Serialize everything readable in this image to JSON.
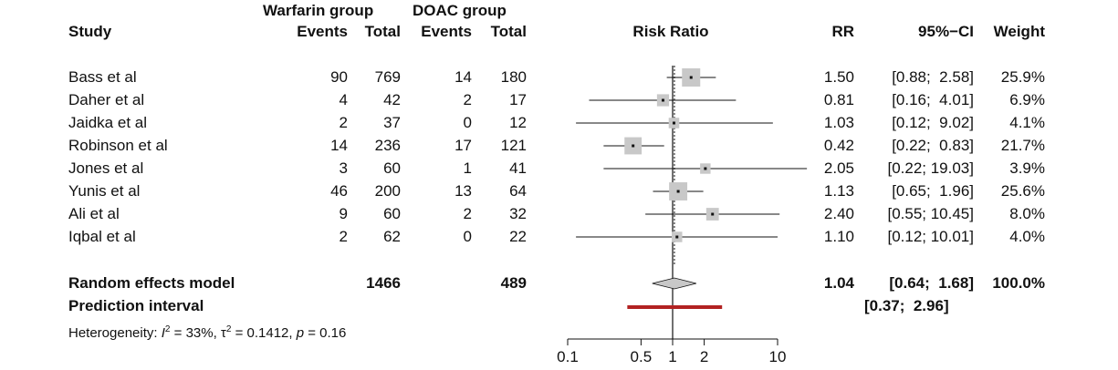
{
  "headers": {
    "warfarin_group": "Warfarin group",
    "doac_group": "DOAC group",
    "study": "Study",
    "w_events": "Events",
    "w_total": "Total",
    "d_events": "Events",
    "d_total": "Total",
    "risk_ratio": "Risk Ratio",
    "rr": "RR",
    "ci": "95%−CI",
    "weight": "Weight"
  },
  "summary": {
    "label": "Random effects model",
    "w_total": "1466",
    "d_total": "489",
    "rr": "1.04",
    "ci": "[0.64;  1.68]",
    "weight": "100.0%",
    "pi_label": "Prediction interval",
    "pi_ci": "[0.37;  2.96]",
    "het_prefix": "Heterogeneity: ",
    "het_i": "I",
    "het_mid": " = 33%, ",
    "het_tau": "τ",
    "het_tail": " = 0.1412, ",
    "het_p": "p",
    "het_pval": " = 0.16"
  },
  "chart_data": {
    "type": "forest",
    "title": "Risk Ratio",
    "scale": "log",
    "xlim": [
      0.1,
      10
    ],
    "null_value": 1,
    "ticks": [
      0.1,
      0.5,
      1,
      2,
      10
    ],
    "tick_labels": [
      "0.1",
      "0.5",
      "1",
      "2",
      "10"
    ],
    "studies": [
      {
        "name": "Bass et al",
        "w_events": "90",
        "w_total": "769",
        "d_events": "14",
        "d_total": "180",
        "rr": 1.5,
        "lo": 0.88,
        "hi": 2.58,
        "rr_text": "1.50",
        "ci_text": "[0.88;  2.58]",
        "weight": 25.9,
        "weight_text": "25.9%"
      },
      {
        "name": "Daher et al",
        "w_events": "4",
        "w_total": "42",
        "d_events": "2",
        "d_total": "17",
        "rr": 0.81,
        "lo": 0.16,
        "hi": 4.01,
        "rr_text": "0.81",
        "ci_text": "[0.16;  4.01]",
        "weight": 6.9,
        "weight_text": "6.9%"
      },
      {
        "name": "Jaidka et al",
        "w_events": "2",
        "w_total": "37",
        "d_events": "0",
        "d_total": "12",
        "rr": 1.03,
        "lo": 0.12,
        "hi": 9.02,
        "rr_text": "1.03",
        "ci_text": "[0.12;  9.02]",
        "weight": 4.1,
        "weight_text": "4.1%"
      },
      {
        "name": "Robinson et al",
        "w_events": "14",
        "w_total": "236",
        "d_events": "17",
        "d_total": "121",
        "rr": 0.42,
        "lo": 0.22,
        "hi": 0.83,
        "rr_text": "0.42",
        "ci_text": "[0.22;  0.83]",
        "weight": 21.7,
        "weight_text": "21.7%"
      },
      {
        "name": "Jones et al",
        "w_events": "3",
        "w_total": "60",
        "d_events": "1",
        "d_total": "41",
        "rr": 2.05,
        "lo": 0.22,
        "hi": 19.03,
        "rr_text": "2.05",
        "ci_text": "[0.22; 19.03]",
        "weight": 3.9,
        "weight_text": "3.9%"
      },
      {
        "name": "Yunis et al",
        "w_events": "46",
        "w_total": "200",
        "d_events": "13",
        "d_total": "64",
        "rr": 1.13,
        "lo": 0.65,
        "hi": 1.96,
        "rr_text": "1.13",
        "ci_text": "[0.65;  1.96]",
        "weight": 25.6,
        "weight_text": "25.6%"
      },
      {
        "name": "Ali et al",
        "w_events": "9",
        "w_total": "60",
        "d_events": "2",
        "d_total": "32",
        "rr": 2.4,
        "lo": 0.55,
        "hi": 10.45,
        "rr_text": "2.40",
        "ci_text": "[0.55; 10.45]",
        "weight": 8.0,
        "weight_text": "8.0%"
      },
      {
        "name": "Iqbal et al",
        "w_events": "2",
        "w_total": "62",
        "d_events": "0",
        "d_total": "22",
        "rr": 1.1,
        "lo": 0.12,
        "hi": 10.01,
        "rr_text": "1.10",
        "ci_text": "[0.12; 10.01]",
        "weight": 4.0,
        "weight_text": "4.0%"
      }
    ],
    "pooled": {
      "rr": 1.04,
      "lo": 0.64,
      "hi": 1.68
    },
    "prediction_interval": {
      "lo": 0.37,
      "hi": 2.96
    },
    "colors": {
      "square": "#c8c8c8",
      "diamond": "#c8c8c8",
      "prediction": "#b22222",
      "line": "#111111"
    }
  }
}
